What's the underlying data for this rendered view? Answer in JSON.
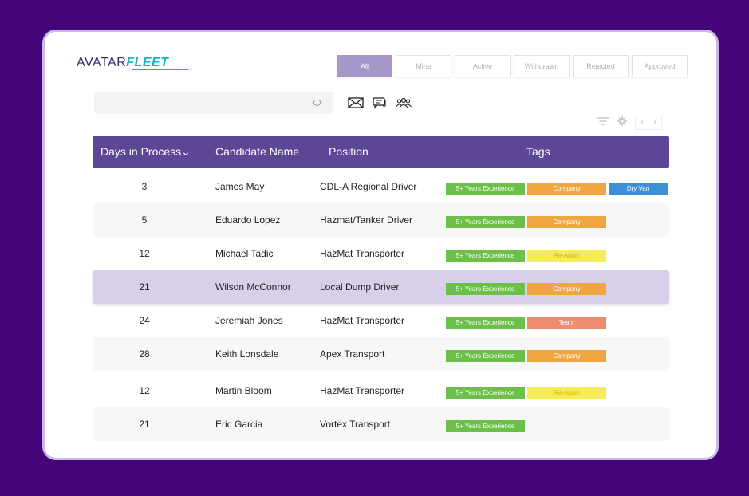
{
  "logo": {
    "part1": "AVATAR",
    "part2": "FLEET"
  },
  "filters": [
    "All",
    "Mine",
    "Active",
    "Withdrawn",
    "Rejected",
    "Approved"
  ],
  "table": {
    "headers": {
      "days": "Days in Process",
      "name": "Candidate Name",
      "position": "Position",
      "tags": "Tags"
    },
    "rows": [
      {
        "days": "3",
        "name": "James May",
        "position": "CDL-A Regional Driver",
        "tags": [
          "5+ Years Experience",
          "Company",
          "Dry Van"
        ]
      },
      {
        "days": "5",
        "name": "Eduardo Lopez",
        "position": "Hazmat/Tanker Driver",
        "tags": [
          "5+ Years Experience",
          "Company"
        ]
      },
      {
        "days": "12",
        "name": "Michael Tadic",
        "position": "HazMat Transporter",
        "tags": [
          "5+ Years Experience",
          "Re-Apply"
        ]
      },
      {
        "days": "21",
        "name": "Wilson McConnor",
        "position": "Local Dump Driver",
        "tags": [
          "5+ Years Experience",
          "Company"
        ]
      },
      {
        "days": "24",
        "name": "Jeremiah Jones",
        "position": "HazMat Transporter",
        "tags": [
          "5+ Years Experience",
          "Team"
        ]
      },
      {
        "days": "28",
        "name": "Keith Lonsdale",
        "position": "Apex Transport",
        "tags": [
          "5+ Years Experience",
          "Company"
        ]
      },
      {
        "days": "12",
        "name": "Martin Bloom",
        "position": "HazMat Transporter",
        "tags": [
          "5+ Years Experience",
          "Re-Apply"
        ]
      },
      {
        "days": "21",
        "name": "Eric Garcia",
        "position": "Vortex Transport",
        "tags": [
          "5+ Years Experience"
        ]
      }
    ]
  },
  "tag_colors": {
    "5+ Years Experience": "#6cc04a",
    "Company": "#f0a640",
    "Dry Van": "#3d8fd6",
    "Re-Apply": "#f6ec5a",
    "Team": "#ee8c6e"
  },
  "icons": {
    "mail": "mail-icon",
    "chat": "chat-icon",
    "team": "team-icon",
    "filter": "filter-icon",
    "settings": "gear-icon"
  },
  "pager": {
    "prev": "‹",
    "next": "›"
  },
  "sort_indicator": "⌄"
}
